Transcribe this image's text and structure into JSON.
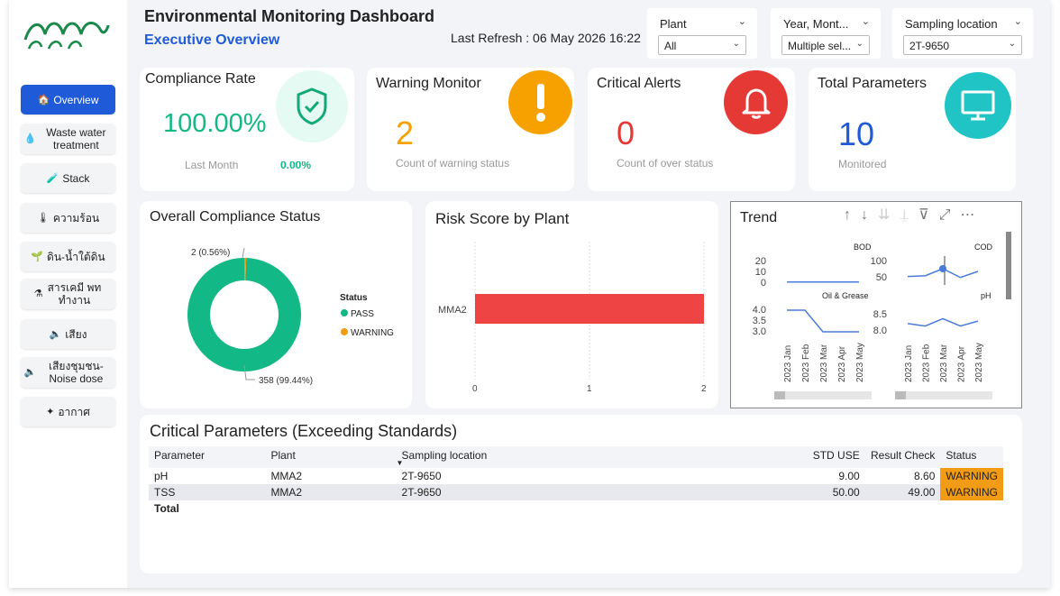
{
  "header": {
    "title": "Environmental Monitoring Dashboard",
    "subtitle": "Executive Overview",
    "refresh": "Last Refresh : 06 May 2026 16:22"
  },
  "sidebar": {
    "items": [
      {
        "label": "Overview",
        "active": true
      },
      {
        "label": "Waste water treatment"
      },
      {
        "label": "Stack"
      },
      {
        "label": "ความร้อน"
      },
      {
        "label": "ดิน-น้ำใต้ดิน"
      },
      {
        "label": "สารเคมี พท ทำงาน"
      },
      {
        "label": "เสียง"
      },
      {
        "label": "เสียงชุมชน-Noise dose"
      },
      {
        "label": "อากาศ"
      }
    ]
  },
  "slicers": [
    {
      "label": "Plant",
      "value": "All"
    },
    {
      "label": "Year, Mont...",
      "value": "Multiple sel..."
    },
    {
      "label": "Sampling location",
      "value": "2T-9650"
    }
  ],
  "kpis": {
    "compliance": {
      "title": "Compliance Rate",
      "value": "100.00%",
      "caption_cut": "Last Month",
      "secondary": "0.00%"
    },
    "warning": {
      "title": "Warning Monitor",
      "value": "2",
      "caption": "Count of warning status"
    },
    "critical": {
      "title": "Critical Alerts",
      "value": "0",
      "caption": "Count of over status"
    },
    "total": {
      "title": "Total Parameters",
      "value": "10",
      "caption": "Monitored"
    }
  },
  "colors": {
    "accent": "#1f5bd8",
    "pass": "#12b886",
    "warning": "#f29b14",
    "critical": "#e53935",
    "bar": "#ef4444",
    "trend_line": "#4a7bd8",
    "teal": "#20c4c4"
  },
  "compliance_status": {
    "title": "Overall Compliance Status",
    "legend_title": "Status",
    "label_pass": "358 (99.44%)",
    "label_warning": "2 (0.56%)"
  },
  "risk": {
    "title": "Risk Score by Plant"
  },
  "trend": {
    "title": "Trend",
    "x_labels": [
      "2023 Jan",
      "2023 Feb",
      "2023 Mar",
      "2023 Apr",
      "2023 May"
    ]
  },
  "chart_data": [
    {
      "type": "pie",
      "title": "Overall Compliance Status",
      "categories": [
        "PASS",
        "WARNING"
      ],
      "values": [
        358,
        2
      ],
      "labels": [
        "358 (99.44%)",
        "2 (0.56%)"
      ],
      "legend": "right"
    },
    {
      "type": "bar",
      "orientation": "horizontal",
      "title": "Risk Score by Plant",
      "categories": [
        "MMA2"
      ],
      "values": [
        2
      ],
      "xlim": [
        0,
        2
      ],
      "xticks": [
        "0",
        "1",
        "2"
      ]
    },
    {
      "type": "line",
      "title": "BOD",
      "x": [
        "2023 Jan",
        "2023 Feb",
        "2023 Mar",
        "2023 Apr",
        "2023 May"
      ],
      "values": [
        1,
        1,
        1,
        1,
        1
      ],
      "yticks": [
        "0",
        "10",
        "20"
      ],
      "ylim": [
        0,
        20
      ]
    },
    {
      "type": "line",
      "title": "COD",
      "x": [
        "2023 Jan",
        "2023 Feb",
        "2023 Mar",
        "2023 Apr",
        "2023 May"
      ],
      "values": [
        55,
        57,
        78,
        52,
        70
      ],
      "yticks": [
        "50",
        "100"
      ],
      "ylim": [
        30,
        110
      ]
    },
    {
      "type": "line",
      "title": "Oil & Grease",
      "x": [
        "2023 Jan",
        "2023 Feb",
        "2023 Mar",
        "2023 Apr",
        "2023 May"
      ],
      "values": [
        4.0,
        4.0,
        3.0,
        3.0,
        3.0
      ],
      "yticks": [
        "3.0",
        "3.5",
        "4.0"
      ],
      "ylim": [
        3.0,
        4.0
      ]
    },
    {
      "type": "line",
      "title": "pH",
      "x": [
        "2023 Jan",
        "2023 Feb",
        "2023 Mar",
        "2023 Apr",
        "2023 May"
      ],
      "values": [
        8.2,
        8.1,
        8.4,
        8.1,
        8.3
      ],
      "yticks": [
        "8.0",
        "8.5"
      ],
      "ylim": [
        7.9,
        8.6
      ]
    }
  ],
  "critical_table": {
    "title": "Critical Parameters (Exceeding Standards)",
    "columns": [
      "Parameter",
      "Plant",
      "Sampling location",
      "STD USE",
      "Result Check",
      "Status"
    ],
    "rows": [
      [
        "pH",
        "MMA2",
        "2T-9650",
        "9.00",
        "8.60",
        "WARNING"
      ],
      [
        "TSS",
        "MMA2",
        "2T-9650",
        "50.00",
        "49.00",
        "WARNING"
      ]
    ],
    "total_label": "Total"
  }
}
